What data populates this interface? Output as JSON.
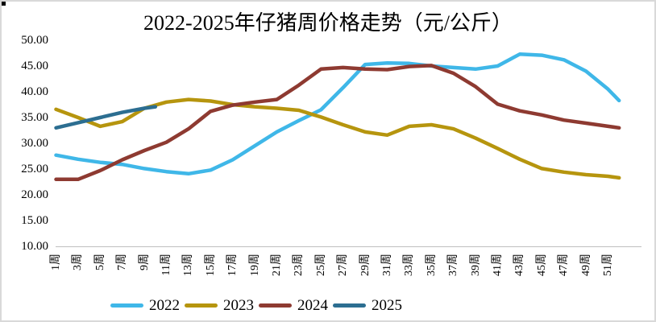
{
  "title": "2022-2025年仔猪周价格走势（元/公斤）",
  "chart_data": {
    "type": "line",
    "title": "2022-2025年仔猪周价格走势（元/公斤）",
    "xlabel": "",
    "ylabel": "",
    "grid": false,
    "legend_position": "bottom",
    "y_axis": {
      "min": 10,
      "max": 50,
      "step": 5,
      "tick_labels": [
        "50.00",
        "45.00",
        "40.00",
        "35.00",
        "30.00",
        "25.00",
        "20.00",
        "15.00",
        "10.00"
      ]
    },
    "x_axis": {
      "unit": "周",
      "tick_labels": [
        "1周",
        "3周",
        "5周",
        "7周",
        "9周",
        "11周",
        "13周",
        "15周",
        "17周",
        "19周",
        "21周",
        "23周",
        "25周",
        "27周",
        "29周",
        "31周",
        "33周",
        "35周",
        "37周",
        "39周",
        "41周",
        "43周",
        "45周",
        "47周",
        "49周",
        "51周"
      ]
    },
    "series": [
      {
        "name": "2022",
        "color": "#3fb7e8",
        "weeks": [
          1,
          3,
          5,
          7,
          9,
          11,
          13,
          15,
          17,
          19,
          21,
          23,
          25,
          27,
          29,
          31,
          33,
          35,
          37,
          39,
          41,
          43,
          45,
          47,
          49,
          51,
          52
        ],
        "values": [
          27.7,
          26.9,
          26.3,
          25.9,
          25.1,
          24.5,
          24.1,
          24.8,
          26.8,
          29.5,
          32.2,
          34.4,
          36.5,
          40.8,
          45.3,
          45.6,
          45.5,
          45.0,
          44.7,
          44.4,
          45.0,
          47.3,
          47.1,
          46.2,
          44.0,
          40.5,
          38.3
        ]
      },
      {
        "name": "2023",
        "color": "#b6950e",
        "weeks": [
          1,
          3,
          5,
          7,
          9,
          11,
          13,
          15,
          17,
          19,
          21,
          23,
          25,
          27,
          29,
          31,
          33,
          35,
          37,
          39,
          41,
          43,
          45,
          47,
          49,
          51,
          52
        ],
        "values": [
          36.6,
          35.0,
          33.3,
          34.2,
          36.8,
          38.0,
          38.5,
          38.2,
          37.5,
          37.1,
          36.8,
          36.4,
          35.1,
          33.6,
          32.2,
          31.6,
          33.3,
          33.6,
          32.8,
          31.0,
          29.0,
          26.9,
          25.1,
          24.4,
          23.9,
          23.6,
          23.3
        ]
      },
      {
        "name": "2024",
        "color": "#8e3a31",
        "weeks": [
          1,
          3,
          5,
          7,
          9,
          11,
          13,
          15,
          17,
          19,
          21,
          23,
          25,
          27,
          29,
          31,
          33,
          35,
          37,
          39,
          41,
          43,
          45,
          47,
          49,
          51,
          52
        ],
        "values": [
          23.0,
          23.0,
          24.7,
          26.8,
          28.6,
          30.2,
          32.8,
          36.2,
          37.4,
          38.0,
          38.5,
          41.3,
          44.4,
          44.7,
          44.4,
          44.3,
          44.9,
          45.1,
          43.6,
          41.0,
          37.6,
          36.3,
          35.5,
          34.5,
          33.9,
          33.3,
          33.0
        ]
      },
      {
        "name": "2025",
        "color": "#2c6e91",
        "weeks": [
          1,
          3,
          5,
          7,
          9,
          10
        ],
        "values": [
          33.0,
          34.0,
          35.0,
          36.0,
          36.8,
          37.1
        ]
      }
    ]
  }
}
